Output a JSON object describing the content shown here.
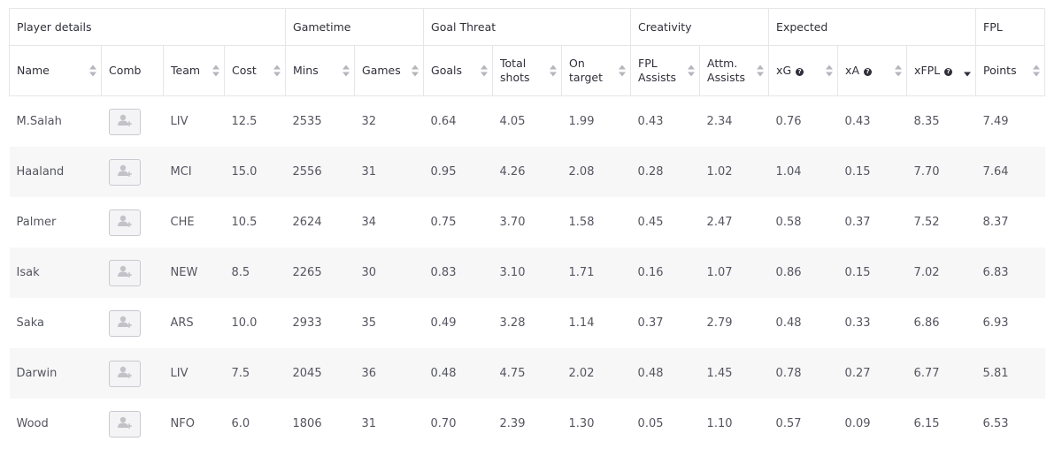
{
  "groups": [
    {
      "label": "Player details",
      "span": 4
    },
    {
      "label": "Gametime",
      "span": 2
    },
    {
      "label": "Goal Threat",
      "span": 3
    },
    {
      "label": "Creativity",
      "span": 2
    },
    {
      "label": "Expected",
      "span": 3
    },
    {
      "label": "FPL",
      "span": 1
    }
  ],
  "columns": [
    {
      "key": "name",
      "label": "Name",
      "sortable": true
    },
    {
      "key": "comb",
      "label": "Comb",
      "sortable": false
    },
    {
      "key": "team",
      "label": "Team",
      "sortable": true
    },
    {
      "key": "cost",
      "label": "Cost",
      "sortable": true
    },
    {
      "key": "mins",
      "label": "Mins",
      "sortable": true
    },
    {
      "key": "games",
      "label": "Games",
      "sortable": true
    },
    {
      "key": "goals",
      "label": "Goals",
      "sortable": true
    },
    {
      "key": "total_shots",
      "label": "Total shots",
      "sortable": true
    },
    {
      "key": "on_target",
      "label": "On target",
      "sortable": true
    },
    {
      "key": "fpl_assists",
      "label": "FPL Assists",
      "sortable": true
    },
    {
      "key": "attm_assists",
      "label": "Attm. Assists",
      "sortable": true
    },
    {
      "key": "xg",
      "label": "xG",
      "sortable": true,
      "help": true
    },
    {
      "key": "xa",
      "label": "xA",
      "sortable": true,
      "help": true
    },
    {
      "key": "xfpl",
      "label": "xFPL",
      "sortable": true,
      "help": true,
      "sorted": "desc"
    },
    {
      "key": "points",
      "label": "Points",
      "sortable": true
    }
  ],
  "help_glyph": "?",
  "comb_icon": "add-user-icon",
  "rows": [
    {
      "name": "M.Salah",
      "team": "LIV",
      "cost": "12.5",
      "mins": "2535",
      "games": "32",
      "goals": "0.64",
      "total_shots": "4.05",
      "on_target": "1.99",
      "fpl_assists": "0.43",
      "attm_assists": "2.34",
      "xg": "0.76",
      "xa": "0.43",
      "xfpl": "8.35",
      "points": "7.49"
    },
    {
      "name": "Haaland",
      "team": "MCI",
      "cost": "15.0",
      "mins": "2556",
      "games": "31",
      "goals": "0.95",
      "total_shots": "4.26",
      "on_target": "2.08",
      "fpl_assists": "0.28",
      "attm_assists": "1.02",
      "xg": "1.04",
      "xa": "0.15",
      "xfpl": "7.70",
      "points": "7.64"
    },
    {
      "name": "Palmer",
      "team": "CHE",
      "cost": "10.5",
      "mins": "2624",
      "games": "34",
      "goals": "0.75",
      "total_shots": "3.70",
      "on_target": "1.58",
      "fpl_assists": "0.45",
      "attm_assists": "2.47",
      "xg": "0.58",
      "xa": "0.37",
      "xfpl": "7.52",
      "points": "8.37"
    },
    {
      "name": "Isak",
      "team": "NEW",
      "cost": "8.5",
      "mins": "2265",
      "games": "30",
      "goals": "0.83",
      "total_shots": "3.10",
      "on_target": "1.71",
      "fpl_assists": "0.16",
      "attm_assists": "1.07",
      "xg": "0.86",
      "xa": "0.15",
      "xfpl": "7.02",
      "points": "6.83"
    },
    {
      "name": "Saka",
      "team": "ARS",
      "cost": "10.0",
      "mins": "2933",
      "games": "35",
      "goals": "0.49",
      "total_shots": "3.28",
      "on_target": "1.14",
      "fpl_assists": "0.37",
      "attm_assists": "2.79",
      "xg": "0.48",
      "xa": "0.33",
      "xfpl": "6.86",
      "points": "6.93"
    },
    {
      "name": "Darwin",
      "team": "LIV",
      "cost": "7.5",
      "mins": "2045",
      "games": "36",
      "goals": "0.48",
      "total_shots": "4.75",
      "on_target": "2.02",
      "fpl_assists": "0.48",
      "attm_assists": "1.45",
      "xg": "0.78",
      "xa": "0.27",
      "xfpl": "6.77",
      "points": "5.81"
    },
    {
      "name": "Wood",
      "team": "NFO",
      "cost": "6.0",
      "mins": "1806",
      "games": "31",
      "goals": "0.70",
      "total_shots": "2.39",
      "on_target": "1.30",
      "fpl_assists": "0.05",
      "attm_assists": "1.10",
      "xg": "0.57",
      "xa": "0.09",
      "xfpl": "6.15",
      "points": "6.53"
    }
  ]
}
